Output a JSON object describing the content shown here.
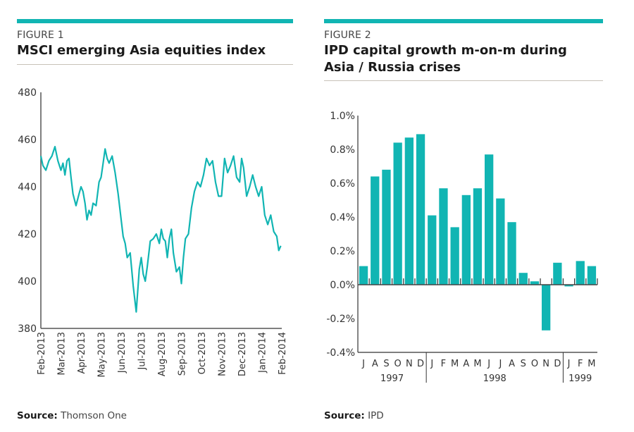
{
  "colors": {
    "accent": "#11b5b3",
    "axis": "#555555",
    "rule": "#c8c2b8"
  },
  "figure1": {
    "label": "FIGURE 1",
    "title": "MSCI emerging Asia equities index",
    "source_label": "Source:",
    "source_text": "Thomson One"
  },
  "figure2": {
    "label": "FIGURE 2",
    "title_line1": "IPD capital growth m-on-m during",
    "title_line2": "Asia / Russia crises",
    "source_label": "Source:",
    "source_text": "IPD"
  },
  "chart_data": [
    {
      "type": "line",
      "title": "MSCI emerging Asia equities index",
      "xlabel": "",
      "ylabel": "",
      "ylim": [
        380,
        480
      ],
      "yticks": [
        "480",
        "460",
        "440",
        "420",
        "400",
        "380"
      ],
      "ytick_values": [
        480,
        460,
        440,
        420,
        400,
        380
      ],
      "xticks": [
        "Feb-2013",
        "Mar-2013",
        "Apr-2013",
        "May-2013",
        "Jun-2013",
        "Jul-2013",
        "Aug-2013",
        "Sep-2013",
        "Oct-2013",
        "Nov-2013",
        "Dec-2013",
        "Jan-2014",
        "Feb-2014"
      ],
      "grid": false,
      "series": [
        {
          "name": "MSCI emerging Asia equities index",
          "x_months": [
            0,
            0.1,
            0.25,
            0.4,
            0.55,
            0.7,
            0.85,
            1.0,
            1.1,
            1.2,
            1.3,
            1.4,
            1.5,
            1.6,
            1.75,
            1.9,
            2.0,
            2.1,
            2.2,
            2.3,
            2.4,
            2.5,
            2.6,
            2.75,
            2.9,
            3.0,
            3.1,
            3.2,
            3.3,
            3.4,
            3.55,
            3.7,
            3.85,
            4.0,
            4.1,
            4.2,
            4.3,
            4.45,
            4.6,
            4.75,
            4.9,
            5.0,
            5.1,
            5.2,
            5.3,
            5.45,
            5.6,
            5.75,
            5.9,
            6.0,
            6.1,
            6.2,
            6.3,
            6.4,
            6.5,
            6.6,
            6.75,
            6.9,
            7.0,
            7.1,
            7.2,
            7.35,
            7.5,
            7.65,
            7.8,
            7.95,
            8.1,
            8.25,
            8.4,
            8.55,
            8.7,
            8.85,
            9.0,
            9.15,
            9.3,
            9.45,
            9.6,
            9.75,
            9.9,
            10.0,
            10.1,
            10.25,
            10.4,
            10.55,
            10.7,
            10.85,
            11.0,
            11.15,
            11.3,
            11.45,
            11.6,
            11.75,
            11.85,
            11.95
          ],
          "values": [
            453,
            449,
            447,
            451,
            453,
            457,
            451,
            447,
            450,
            445,
            451,
            452,
            444,
            437,
            432,
            437,
            440,
            438,
            433,
            426,
            430,
            428,
            433,
            432,
            442,
            444,
            450,
            456,
            452,
            450,
            453,
            446,
            437,
            426,
            419,
            416,
            410,
            412,
            398,
            387,
            405,
            410,
            403,
            400,
            406,
            417,
            418,
            420,
            416,
            422,
            418,
            417,
            410,
            418,
            422,
            412,
            404,
            406,
            399,
            410,
            418,
            420,
            431,
            438,
            442,
            440,
            445,
            452,
            449,
            451,
            442,
            436,
            436,
            452,
            446,
            449,
            453,
            444,
            442,
            452,
            448,
            436,
            440,
            445,
            440,
            436,
            440,
            428,
            424,
            428,
            421,
            419,
            413,
            415
          ]
        }
      ]
    },
    {
      "type": "bar",
      "title": "IPD capital growth m-on-m during Asia / Russia crises",
      "xlabel": "",
      "ylabel": "",
      "ylim": [
        -0.4,
        1.0
      ],
      "yticks": [
        "1.0%",
        "0.8%",
        "0.6%",
        "0.4%",
        "0.2%",
        "0.0%",
        "-0.2%",
        "-0.4%"
      ],
      "ytick_values": [
        1.0,
        0.8,
        0.6,
        0.4,
        0.2,
        0.0,
        -0.2,
        -0.4
      ],
      "grid": false,
      "categories": [
        "J",
        "A",
        "S",
        "O",
        "N",
        "D",
        "J",
        "F",
        "M",
        "A",
        "M",
        "J",
        "J",
        "A",
        "S",
        "O",
        "N",
        "D",
        "J",
        "F",
        "M"
      ],
      "year_groups": [
        {
          "label": "1997",
          "count": 6
        },
        {
          "label": "1998",
          "count": 12
        },
        {
          "label": "1999",
          "count": 3
        }
      ],
      "series": [
        {
          "name": "Capital growth m-on-m (%)",
          "values": [
            0.11,
            0.64,
            0.68,
            0.84,
            0.87,
            0.89,
            0.41,
            0.57,
            0.34,
            0.53,
            0.57,
            0.77,
            0.51,
            0.37,
            0.07,
            0.02,
            -0.27,
            0.13,
            -0.01,
            0.14,
            0.11
          ]
        }
      ]
    }
  ]
}
